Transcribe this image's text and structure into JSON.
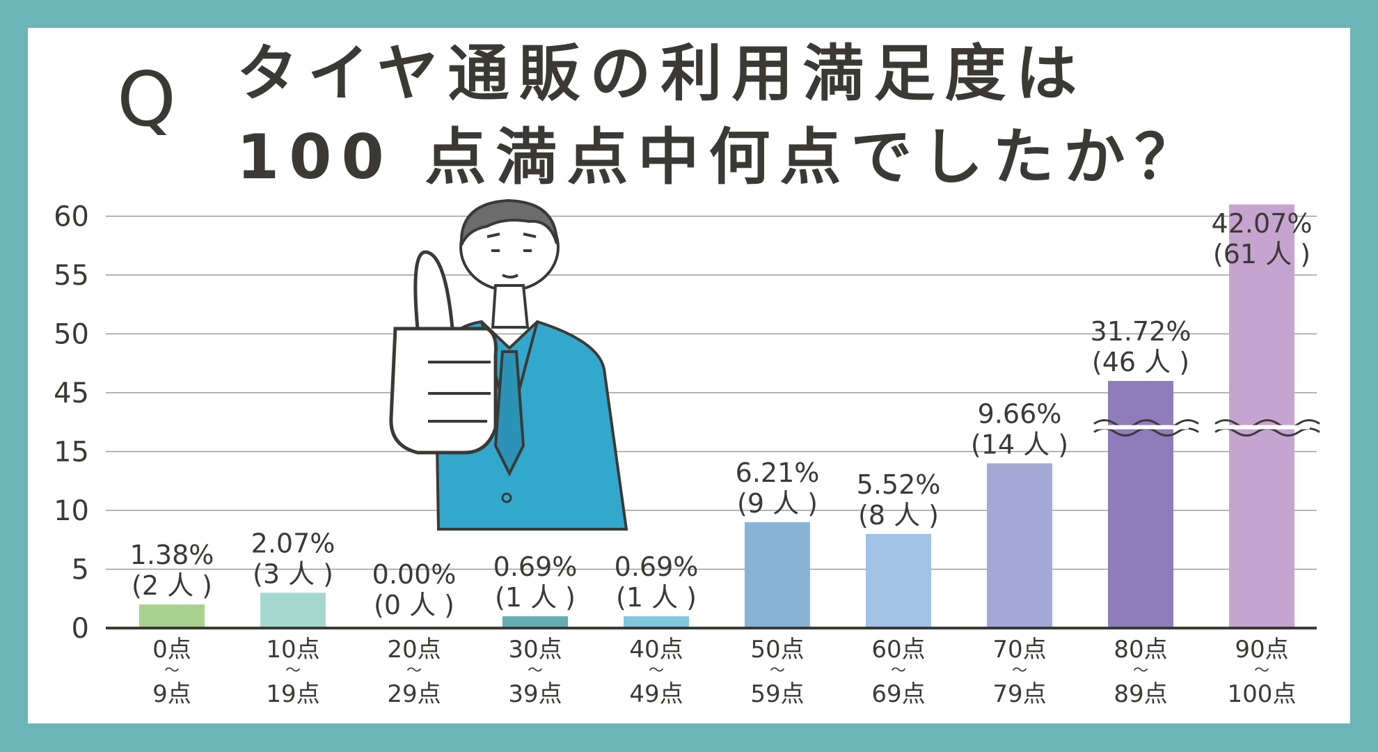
{
  "title": {
    "q_mark": "Q",
    "line1": "タイヤ通販の利用満足度は",
    "line2": "100 点満点中何点でしたか？"
  },
  "chart_data": {
    "type": "bar",
    "title": "タイヤ通販の利用満足度は 100点満点中何点でしたか？",
    "xlabel": "",
    "ylabel": "",
    "y_ticks": [
      "0",
      "5",
      "10",
      "15",
      "45",
      "50",
      "55",
      "60"
    ],
    "y_axis_break": "15〜45 (broken axis)",
    "grid": true,
    "categories": [
      {
        "from": "0点",
        "to": "9点"
      },
      {
        "from": "10点",
        "to": "19点"
      },
      {
        "from": "20点",
        "to": "29点"
      },
      {
        "from": "30点",
        "to": "39点"
      },
      {
        "from": "40点",
        "to": "49点"
      },
      {
        "from": "50点",
        "to": "59点"
      },
      {
        "from": "60点",
        "to": "69点"
      },
      {
        "from": "70点",
        "to": "79点"
      },
      {
        "from": "80点",
        "to": "89点"
      },
      {
        "from": "90点",
        "to": "100点"
      }
    ],
    "values": [
      2,
      3,
      0,
      1,
      1,
      9,
      8,
      14,
      46,
      61
    ],
    "percent_labels": [
      "1.38%",
      "2.07%",
      "0.00%",
      "0.69%",
      "0.69%",
      "6.21%",
      "5.52%",
      "9.66%",
      "31.72%",
      "42.07%"
    ],
    "count_labels": [
      "(2 人 )",
      "(3 人 )",
      "(0 人 )",
      "(1 人 )",
      "(1 人 )",
      "(9 人 )",
      "(8 人 )",
      "(14 人 )",
      "(46 人 )",
      "(61 人 )"
    ],
    "range_mark": "〜",
    "colors": [
      "#a9d18e",
      "#a4d8cf",
      "#a4d8cf",
      "#62aeb0",
      "#7fc8e0",
      "#88b3d6",
      "#a2c2e6",
      "#a4a8d6",
      "#8f7cbb",
      "#c6a4d0"
    ]
  },
  "illustration": {
    "name": "businessman-thumbs-up",
    "suit_color": "#32a8cc"
  }
}
